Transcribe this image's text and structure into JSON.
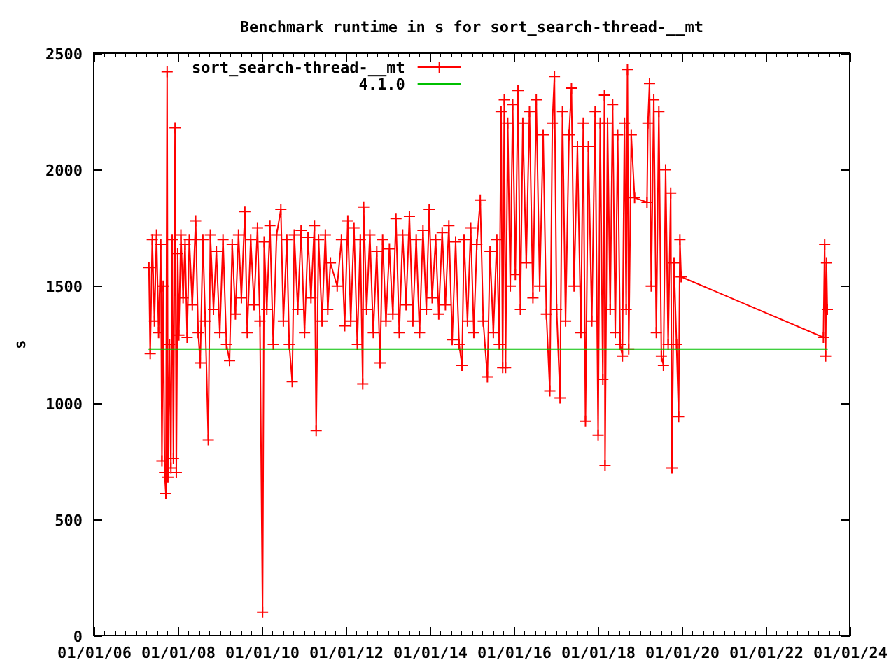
{
  "chart_data": {
    "type": "line",
    "title": "Benchmark runtime in s for sort_search-thread-__mt",
    "ylabel": "s",
    "xlim": [
      "2006-01-01",
      "2024-01-01"
    ],
    "ylim": [
      0,
      2500
    ],
    "xticks": [
      {
        "value": "2006-01-01",
        "label": "01/01/06"
      },
      {
        "value": "2006-04-01",
        "label": null
      },
      {
        "value": "2006-07-01",
        "label": null
      },
      {
        "value": "2006-10-01",
        "label": null
      },
      {
        "value": "2007-01-01",
        "label": null
      },
      {
        "value": "2007-04-01",
        "label": null
      },
      {
        "value": "2007-07-01",
        "label": null
      },
      {
        "value": "2007-10-01",
        "label": null
      },
      {
        "value": "2008-01-01",
        "label": "01/01/08"
      },
      {
        "value": "2008-04-01",
        "label": null
      },
      {
        "value": "2008-07-01",
        "label": null
      },
      {
        "value": "2008-10-01",
        "label": null
      },
      {
        "value": "2009-01-01",
        "label": null
      },
      {
        "value": "2009-04-01",
        "label": null
      },
      {
        "value": "2009-07-01",
        "label": null
      },
      {
        "value": "2009-10-01",
        "label": null
      },
      {
        "value": "2010-01-01",
        "label": "01/01/10"
      },
      {
        "value": "2010-04-01",
        "label": null
      },
      {
        "value": "2010-07-01",
        "label": null
      },
      {
        "value": "2010-10-01",
        "label": null
      },
      {
        "value": "2011-01-01",
        "label": null
      },
      {
        "value": "2011-04-01",
        "label": null
      },
      {
        "value": "2011-07-01",
        "label": null
      },
      {
        "value": "2011-10-01",
        "label": null
      },
      {
        "value": "2012-01-01",
        "label": "01/01/12"
      },
      {
        "value": "2012-04-01",
        "label": null
      },
      {
        "value": "2012-07-01",
        "label": null
      },
      {
        "value": "2012-10-01",
        "label": null
      },
      {
        "value": "2013-01-01",
        "label": null
      },
      {
        "value": "2013-04-01",
        "label": null
      },
      {
        "value": "2013-07-01",
        "label": null
      },
      {
        "value": "2013-10-01",
        "label": null
      },
      {
        "value": "2014-01-01",
        "label": "01/01/14"
      },
      {
        "value": "2014-04-01",
        "label": null
      },
      {
        "value": "2014-07-01",
        "label": null
      },
      {
        "value": "2014-10-01",
        "label": null
      },
      {
        "value": "2015-01-01",
        "label": null
      },
      {
        "value": "2015-04-01",
        "label": null
      },
      {
        "value": "2015-07-01",
        "label": null
      },
      {
        "value": "2015-10-01",
        "label": null
      },
      {
        "value": "2016-01-01",
        "label": "01/01/16"
      },
      {
        "value": "2016-04-01",
        "label": null
      },
      {
        "value": "2016-07-01",
        "label": null
      },
      {
        "value": "2016-10-01",
        "label": null
      },
      {
        "value": "2017-01-01",
        "label": null
      },
      {
        "value": "2017-04-01",
        "label": null
      },
      {
        "value": "2017-07-01",
        "label": null
      },
      {
        "value": "2017-10-01",
        "label": null
      },
      {
        "value": "2018-01-01",
        "label": "01/01/18"
      },
      {
        "value": "2018-04-01",
        "label": null
      },
      {
        "value": "2018-07-01",
        "label": null
      },
      {
        "value": "2018-10-01",
        "label": null
      },
      {
        "value": "2019-01-01",
        "label": null
      },
      {
        "value": "2019-04-01",
        "label": null
      },
      {
        "value": "2019-07-01",
        "label": null
      },
      {
        "value": "2019-10-01",
        "label": null
      },
      {
        "value": "2020-01-01",
        "label": "01/01/20"
      },
      {
        "value": "2020-04-01",
        "label": null
      },
      {
        "value": "2020-07-01",
        "label": null
      },
      {
        "value": "2020-10-01",
        "label": null
      },
      {
        "value": "2021-01-01",
        "label": null
      },
      {
        "value": "2021-04-01",
        "label": null
      },
      {
        "value": "2021-07-01",
        "label": null
      },
      {
        "value": "2021-10-01",
        "label": null
      },
      {
        "value": "2022-01-01",
        "label": "01/01/22"
      },
      {
        "value": "2022-04-01",
        "label": null
      },
      {
        "value": "2022-07-01",
        "label": null
      },
      {
        "value": "2022-10-01",
        "label": null
      },
      {
        "value": "2023-01-01",
        "label": null
      },
      {
        "value": "2023-04-01",
        "label": null
      },
      {
        "value": "2023-07-01",
        "label": null
      },
      {
        "value": "2023-10-01",
        "label": null
      },
      {
        "value": "2024-01-01",
        "label": "01/01/24"
      }
    ],
    "yticks": [
      0,
      500,
      1000,
      1500,
      2000,
      2500
    ],
    "legend": "top left",
    "marker": "cross",
    "series": [
      {
        "name": "sort_search-thread-__mt",
        "color": "#ff0000",
        "x": [
          "2007-04-26",
          "2007-05-07",
          "2007-05-25",
          "2007-06-13",
          "2007-07-01",
          "2007-07-19",
          "2007-08-07",
          "2007-08-17",
          "2007-08-28",
          "2007-09-09",
          "2007-09-20",
          "2007-10-01",
          "2007-10-08",
          "2007-10-22",
          "2007-11-03",
          "2007-11-14",
          "2007-11-25",
          "2007-12-09",
          "2007-12-20",
          "2008-01-01",
          "2008-01-11",
          "2008-01-29",
          "2008-02-17",
          "2008-03-05",
          "2008-03-23",
          "2008-04-11",
          "2008-05-07",
          "2008-06-05",
          "2008-06-27",
          "2008-07-15",
          "2008-08-07",
          "2008-08-28",
          "2008-09-23",
          "2008-10-11",
          "2008-11-07",
          "2008-12-02",
          "2009-01-01",
          "2009-01-29",
          "2009-02-28",
          "2009-03-27",
          "2009-04-19",
          "2009-05-17",
          "2009-06-13",
          "2009-07-08",
          "2009-08-07",
          "2009-08-28",
          "2009-09-27",
          "2009-10-26",
          "2009-11-25",
          "2009-12-16",
          "2010-01-08",
          "2010-01-22",
          "2010-02-14",
          "2010-03-13",
          "2010-04-11",
          "2010-05-10",
          "2010-06-16",
          "2010-07-08",
          "2010-08-07",
          "2010-08-28",
          "2010-09-23",
          "2010-10-11",
          "2010-11-10",
          "2010-12-09",
          "2011-01-08",
          "2011-02-07",
          "2011-03-05",
          "2011-04-04",
          "2011-04-19",
          "2011-05-10",
          "2011-06-09",
          "2011-07-08",
          "2011-07-29",
          "2011-08-21",
          "2011-10-19",
          "2011-11-25",
          "2011-12-23",
          "2012-01-19",
          "2012-02-14",
          "2012-03-13",
          "2012-04-11",
          "2012-05-07",
          "2012-05-28",
          "2012-06-05",
          "2012-07-01",
          "2012-07-29",
          "2012-08-28",
          "2012-09-27",
          "2012-10-26",
          "2012-11-17",
          "2012-12-16",
          "2013-01-15",
          "2013-02-14",
          "2013-03-13",
          "2013-04-11",
          "2013-05-10",
          "2013-06-09",
          "2013-07-08",
          "2013-08-07",
          "2013-09-05",
          "2013-10-04",
          "2013-11-03",
          "2013-12-02",
          "2013-12-27",
          "2014-01-22",
          "2014-02-21",
          "2014-03-20",
          "2014-04-19",
          "2014-05-17",
          "2014-06-16",
          "2014-07-15",
          "2014-08-14",
          "2014-09-13",
          "2014-10-08",
          "2014-10-26",
          "2014-11-25",
          "2014-12-23",
          "2015-01-19",
          "2015-02-14",
          "2015-03-16",
          "2015-04-11",
          "2015-05-17",
          "2015-06-09",
          "2015-07-08",
          "2015-08-07",
          "2015-08-28",
          "2015-09-13",
          "2015-09-27",
          "2015-10-11",
          "2015-10-22",
          "2015-11-10",
          "2015-12-02",
          "2015-12-23",
          "2016-01-15",
          "2016-02-07",
          "2016-02-28",
          "2016-03-20",
          "2016-04-19",
          "2016-05-17",
          "2016-06-16",
          "2016-07-15",
          "2016-08-14",
          "2016-09-13",
          "2016-10-11",
          "2016-11-10",
          "2016-12-02",
          "2016-12-20",
          "2017-01-08",
          "2017-02-07",
          "2017-02-28",
          "2017-03-27",
          "2017-04-26",
          "2017-05-17",
          "2017-06-09",
          "2017-07-08",
          "2017-08-07",
          "2017-08-28",
          "2017-09-16",
          "2017-10-11",
          "2017-11-10",
          "2017-12-09",
          "2018-01-04",
          "2018-01-22",
          "2018-02-14",
          "2018-02-28",
          "2018-03-05",
          "2018-03-27",
          "2018-04-19",
          "2018-05-10",
          "2018-06-02",
          "2018-06-23",
          "2018-07-15",
          "2018-08-03",
          "2018-08-21",
          "2018-09-05",
          "2018-09-16",
          "2018-09-27",
          "2018-10-19",
          "2018-11-17",
          "2019-03-05",
          "2019-03-13",
          "2019-03-27",
          "2019-04-11",
          "2019-05-03",
          "2019-05-25",
          "2019-06-16",
          "2019-07-08",
          "2019-07-26",
          "2019-08-14",
          "2019-09-05",
          "2019-09-27",
          "2019-10-08",
          "2019-10-26",
          "2019-11-17",
          "2019-12-05",
          "2019-12-16",
          "2019-12-27",
          "2023-05-17",
          "2023-05-28",
          "2023-06-05",
          "2023-06-13",
          "2023-06-20"
        ],
        "values": [
          1580,
          1210,
          1700,
          1350,
          1720,
          1300,
          1680,
          750,
          1500,
          700,
          610,
          2420,
          680,
          1250,
          720,
          1700,
          760,
          2180,
          700,
          1640,
          1290,
          1720,
          1450,
          1680,
          1280,
          1700,
          1420,
          1780,
          1300,
          1170,
          1700,
          1350,
          840,
          1720,
          1400,
          1650,
          1300,
          1700,
          1250,
          1180,
          1680,
          1380,
          1720,
          1450,
          1820,
          1300,
          1700,
          1420,
          1750,
          1350,
          100,
          1690,
          1400,
          1760,
          1250,
          1720,
          1830,
          1350,
          1700,
          1250,
          1090,
          1720,
          1400,
          1740,
          1300,
          1710,
          1450,
          1760,
          880,
          1700,
          1350,
          1720,
          1400,
          1600,
          1500,
          1700,
          1330,
          1780,
          1350,
          1750,
          1250,
          1700,
          1080,
          1840,
          1400,
          1720,
          1300,
          1650,
          1170,
          1700,
          1350,
          1660,
          1380,
          1790,
          1300,
          1720,
          1420,
          1800,
          1350,
          1700,
          1300,
          1740,
          1400,
          1830,
          1450,
          1700,
          1380,
          1730,
          1420,
          1760,
          1270,
          1690,
          1250,
          1160,
          1700,
          1350,
          1750,
          1300,
          1680,
          1870,
          1350,
          1110,
          1650,
          1300,
          1700,
          1250,
          2250,
          1150,
          2300,
          1150,
          2200,
          1500,
          2280,
          1550,
          2340,
          1400,
          2200,
          1600,
          2250,
          1450,
          2300,
          1500,
          2150,
          1380,
          1050,
          2200,
          2400,
          1400,
          1020,
          2250,
          1350,
          2150,
          2350,
          1500,
          2100,
          1300,
          2200,
          920,
          2100,
          1350,
          2250,
          860,
          2200,
          1100,
          2320,
          730,
          2200,
          1400,
          2280,
          1300,
          2150,
          1250,
          1200,
          2200,
          1400,
          2430,
          1230,
          2150,
          1880,
          1860,
          2200,
          2370,
          1500,
          2300,
          1300,
          2250,
          1200,
          1160,
          2000,
          1250,
          1900,
          720,
          1600,
          1250,
          940,
          1700,
          1540,
          1280,
          1680,
          1200,
          1600,
          1400
        ]
      },
      {
        "name": "4.1.0",
        "color": "#00c000",
        "marker": "none",
        "x": [
          "2007-04-26",
          "2023-06-20"
        ],
        "values": [
          1230,
          1230
        ]
      }
    ]
  }
}
